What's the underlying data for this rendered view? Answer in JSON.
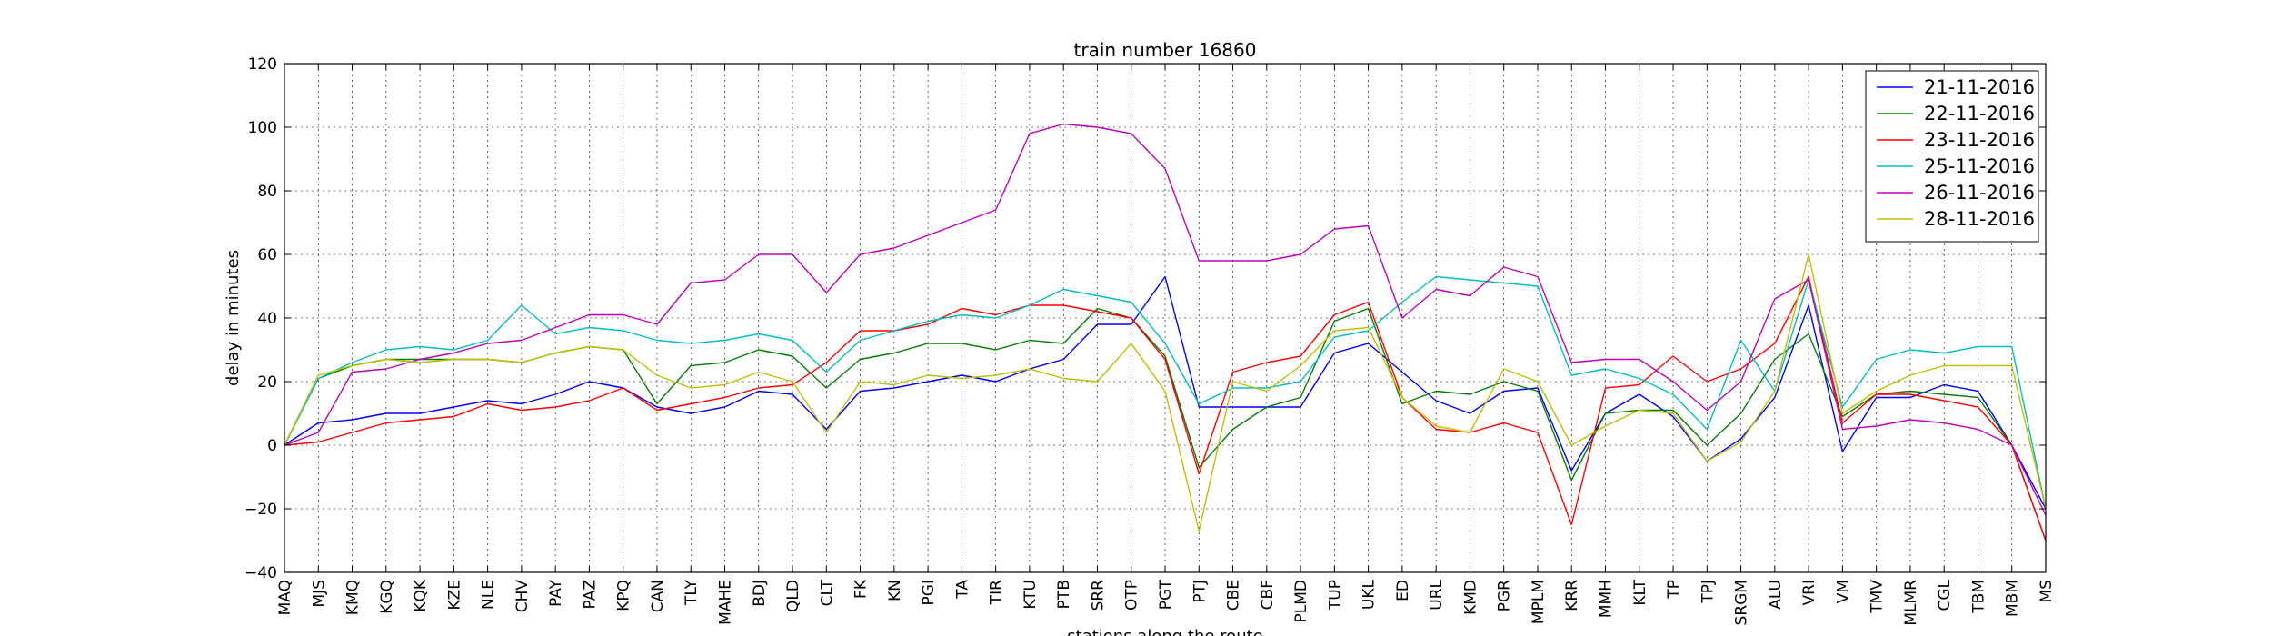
{
  "chart_data": {
    "type": "line",
    "title": "train number 16860",
    "xlabel": "stations along the route",
    "ylabel": "delay in minutes",
    "ylim": [
      -40,
      120
    ],
    "yticks": [
      -40,
      -20,
      0,
      20,
      40,
      60,
      80,
      100,
      120
    ],
    "grid": true,
    "legend_position": "top-right",
    "categories": [
      "MAQ",
      "MJS",
      "KMQ",
      "KGQ",
      "KQK",
      "KZE",
      "NLE",
      "CHV",
      "PAY",
      "PAZ",
      "KPQ",
      "CAN",
      "TLY",
      "MAHE",
      "BDJ",
      "QLD",
      "CLT",
      "FK",
      "KN",
      "PGI",
      "TA",
      "TIR",
      "KTU",
      "PTB",
      "SRR",
      "OTP",
      "PGT",
      "PTJ",
      "CBE",
      "CBF",
      "PLMD",
      "TUP",
      "UKL",
      "ED",
      "URL",
      "KMD",
      "PGR",
      "MPLM",
      "KRR",
      "MMH",
      "KLT",
      "TP",
      "TPJ",
      "SRGM",
      "ALU",
      "VRI",
      "VM",
      "TMV",
      "MLMR",
      "CGL",
      "TBM",
      "MBM",
      "MS"
    ],
    "series": [
      {
        "name": "21-11-2016",
        "color": "#0000ff",
        "values": [
          0,
          7,
          8,
          10,
          10,
          12,
          14,
          13,
          16,
          20,
          18,
          12,
          10,
          12,
          17,
          16,
          5,
          17,
          18,
          20,
          22,
          20,
          24,
          27,
          38,
          38,
          53,
          12,
          12,
          12,
          12,
          29,
          32,
          23,
          14,
          10,
          17,
          18,
          -8,
          10,
          16,
          9,
          -5,
          2,
          15,
          44,
          -2,
          15,
          15,
          19,
          17,
          0,
          -20
        ]
      },
      {
        "name": "22-11-2016",
        "color": "#008000",
        "values": [
          0,
          21,
          25,
          27,
          27,
          27,
          27,
          26,
          29,
          31,
          30,
          13,
          25,
          26,
          30,
          28,
          18,
          27,
          29,
          32,
          32,
          30,
          33,
          32,
          43,
          40,
          28,
          -7,
          5,
          12,
          15,
          39,
          43,
          13,
          17,
          16,
          20,
          17,
          -11,
          10,
          11,
          11,
          0,
          10,
          27,
          35,
          9,
          16,
          17,
          16,
          15,
          0,
          -30
        ]
      },
      {
        "name": "23-11-2016",
        "color": "#ff0000",
        "values": [
          0,
          1,
          4,
          7,
          8,
          9,
          13,
          11,
          12,
          14,
          18,
          11,
          13,
          15,
          18,
          19,
          26,
          36,
          36,
          38,
          43,
          41,
          44,
          44,
          42,
          40,
          27,
          -9,
          23,
          26,
          28,
          41,
          45,
          15,
          5,
          4,
          7,
          4,
          -25,
          18,
          19,
          28,
          20,
          24,
          32,
          53,
          7,
          16,
          16,
          14,
          12,
          0,
          -30
        ]
      },
      {
        "name": "25-11-2016",
        "color": "#00bfbf",
        "values": [
          0,
          21,
          26,
          30,
          31,
          30,
          33,
          44,
          35,
          37,
          36,
          33,
          32,
          33,
          35,
          33,
          23,
          33,
          36,
          39,
          41,
          40,
          44,
          49,
          47,
          45,
          32,
          13,
          18,
          18,
          20,
          34,
          36,
          45,
          53,
          52,
          51,
          50,
          22,
          24,
          21,
          16,
          5,
          33,
          17,
          52,
          12,
          27,
          30,
          29,
          31,
          31,
          -20
        ]
      },
      {
        "name": "26-11-2016",
        "color": "#bf00bf",
        "values": [
          0,
          4,
          23,
          24,
          27,
          29,
          32,
          33,
          37,
          41,
          41,
          38,
          51,
          52,
          60,
          60,
          48,
          60,
          62,
          66,
          70,
          74,
          98,
          101,
          100,
          98,
          87,
          58,
          58,
          58,
          60,
          68,
          69,
          40,
          49,
          47,
          56,
          53,
          26,
          27,
          27,
          20,
          11,
          20,
          46,
          52,
          5,
          6,
          8,
          7,
          5,
          0,
          -22
        ]
      },
      {
        "name": "28-11-2016",
        "color": "#bfbf00",
        "values": [
          0,
          22,
          25,
          27,
          26,
          27,
          27,
          26,
          29,
          31,
          30,
          22,
          18,
          19,
          23,
          20,
          4,
          20,
          19,
          22,
          21,
          22,
          24,
          21,
          20,
          32,
          17,
          -27,
          20,
          17,
          25,
          36,
          37,
          15,
          6,
          4,
          24,
          20,
          0,
          6,
          11,
          10,
          -5,
          1,
          17,
          60,
          10,
          17,
          22,
          25,
          25,
          25,
          -20
        ]
      }
    ]
  }
}
